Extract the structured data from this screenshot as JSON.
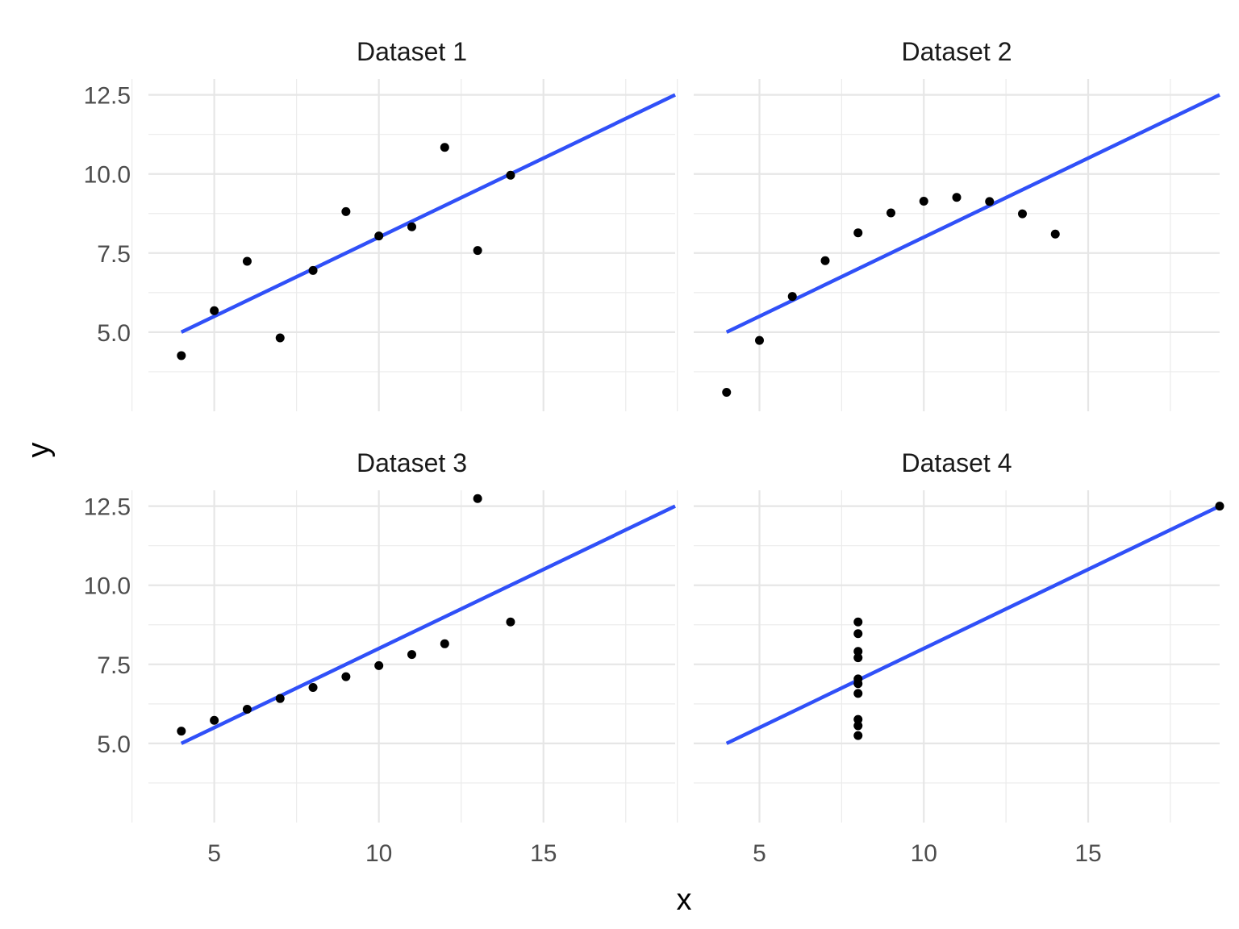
{
  "chart_data": {
    "type": "scatter",
    "facet_layout": "2x2",
    "xlabel": "x",
    "ylabel": "y",
    "xlim": [
      3.0,
      19.0
    ],
    "ylim": [
      2.5,
      13.0
    ],
    "x_ticks": [
      5,
      10,
      15
    ],
    "y_ticks": [
      "5.0",
      "7.5",
      "10.0",
      "12.5"
    ],
    "y_tick_values": [
      5.0,
      7.5,
      10.0,
      12.5
    ],
    "grid": true,
    "point_color": "#000000",
    "line_color": "#3050f8",
    "panels": [
      {
        "title": "Dataset 1",
        "points": [
          [
            4,
            4.26
          ],
          [
            5,
            5.68
          ],
          [
            6,
            7.24
          ],
          [
            7,
            4.82
          ],
          [
            8,
            6.95
          ],
          [
            9,
            8.81
          ],
          [
            10,
            8.04
          ],
          [
            11,
            8.33
          ],
          [
            12,
            10.84
          ],
          [
            13,
            7.58
          ],
          [
            14,
            9.96
          ]
        ],
        "fit_line": [
          [
            4,
            5.0
          ],
          [
            19,
            12.5
          ]
        ]
      },
      {
        "title": "Dataset 2",
        "points": [
          [
            4,
            3.1
          ],
          [
            5,
            4.74
          ],
          [
            6,
            6.13
          ],
          [
            7,
            7.26
          ],
          [
            8,
            8.14
          ],
          [
            9,
            8.77
          ],
          [
            10,
            9.14
          ],
          [
            11,
            9.26
          ],
          [
            12,
            9.13
          ],
          [
            13,
            8.74
          ],
          [
            14,
            8.1
          ]
        ],
        "fit_line": [
          [
            4,
            5.0
          ],
          [
            19,
            12.5
          ]
        ]
      },
      {
        "title": "Dataset 3",
        "points": [
          [
            4,
            5.39
          ],
          [
            5,
            5.73
          ],
          [
            6,
            6.08
          ],
          [
            7,
            6.42
          ],
          [
            8,
            6.77
          ],
          [
            9,
            7.11
          ],
          [
            10,
            7.46
          ],
          [
            11,
            7.81
          ],
          [
            12,
            8.15
          ],
          [
            13,
            12.74
          ],
          [
            14,
            8.84
          ]
        ],
        "fit_line": [
          [
            4,
            5.0
          ],
          [
            19,
            12.5
          ]
        ]
      },
      {
        "title": "Dataset 4",
        "points": [
          [
            8,
            6.58
          ],
          [
            8,
            5.76
          ],
          [
            8,
            7.71
          ],
          [
            8,
            8.84
          ],
          [
            8,
            8.47
          ],
          [
            8,
            7.04
          ],
          [
            8,
            5.25
          ],
          [
            19,
            12.5
          ],
          [
            8,
            5.56
          ],
          [
            8,
            7.91
          ],
          [
            8,
            6.89
          ]
        ],
        "fit_line": [
          [
            4,
            5.0
          ],
          [
            19,
            12.5
          ]
        ]
      }
    ]
  }
}
